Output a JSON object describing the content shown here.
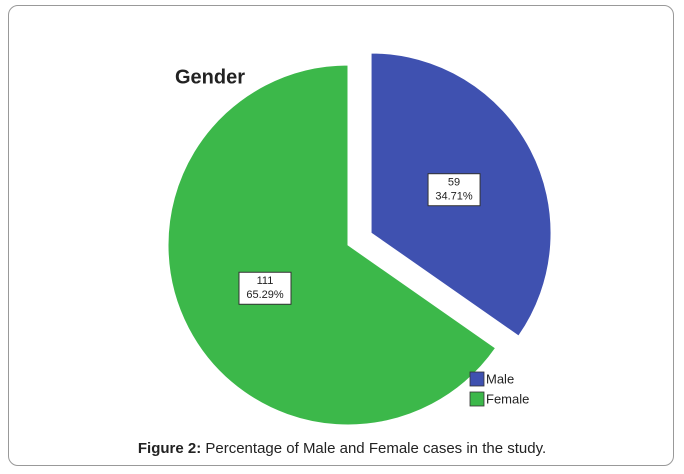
{
  "chart_data": {
    "type": "pie",
    "title": "Gender",
    "categories": [
      "Male",
      "Female"
    ],
    "values": [
      59,
      111
    ],
    "percentages": [
      34.71,
      65.29
    ],
    "percentage_labels": [
      "34.71%",
      "65.29%"
    ],
    "colors": [
      "#3f51b0",
      "#3cb84a"
    ],
    "exploded": [
      true,
      false
    ],
    "legend": "bottom-right"
  },
  "caption": {
    "label": "Figure 2:",
    "text": "Percentage of Male and Female cases in the study."
  }
}
